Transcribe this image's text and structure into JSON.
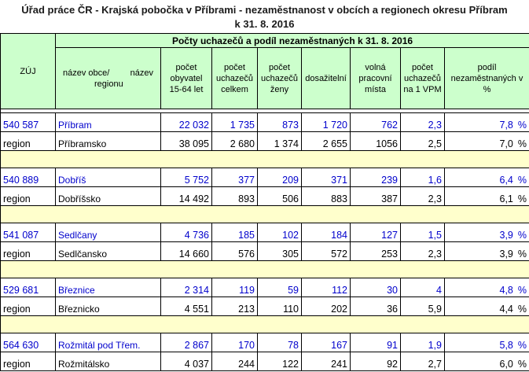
{
  "title": {
    "line1": "Úřad práce ČR - Krajská pobočka v Příbrami - nezaměstnanost v obcích a regionech okresu Příbram",
    "line2": "k 31. 8. 2016"
  },
  "header": {
    "group": "Počty uchazečů a podíl nezaměstnaných k 31. 8. 2016",
    "zuj": "ZÚJ",
    "name_a": "název obce/",
    "name_b": "název",
    "name_c": "regionu",
    "pop": "počet obyvatel 15-64 let",
    "total": "počet uchazečů celkem",
    "women": "počet uchazečů ženy",
    "avail": "dosažitelní",
    "vacancies": "volná pracovní místa",
    "per_vpm": "počet uchazečů na 1 VPM",
    "share": "podíl nezaměstnaných v %"
  },
  "groups": [
    {
      "municipality": {
        "code": "540 587",
        "name": "Příbram",
        "pop": "22 032",
        "total": "1 735",
        "women": "873",
        "avail": "1 720",
        "vacancies": "762",
        "per_vpm": "2,3",
        "share": "7,8",
        "unit": "%"
      },
      "region": {
        "code": "region",
        "name": "Příbramsko",
        "pop": "38 095",
        "total": "2 680",
        "women": "1 374",
        "avail": "2 655",
        "vacancies": "1056",
        "per_vpm": "2,5",
        "share": "7,0",
        "unit": "%"
      }
    },
    {
      "municipality": {
        "code": "540 889",
        "name": "Dobříš",
        "pop": "5 752",
        "total": "377",
        "women": "209",
        "avail": "371",
        "vacancies": "239",
        "per_vpm": "1,6",
        "share": "6,4",
        "unit": "%"
      },
      "region": {
        "code": "region",
        "name": "Dobříšsko",
        "pop": "14 492",
        "total": "893",
        "women": "506",
        "avail": "883",
        "vacancies": "387",
        "per_vpm": "2,3",
        "share": "6,1",
        "unit": "%"
      }
    },
    {
      "municipality": {
        "code": "541 087",
        "name": "Sedlčany",
        "pop": "4 736",
        "total": "185",
        "women": "102",
        "avail": "184",
        "vacancies": "127",
        "per_vpm": "1,5",
        "share": "3,9",
        "unit": "%"
      },
      "region": {
        "code": "region",
        "name": "Sedlčansko",
        "pop": "14 660",
        "total": "576",
        "women": "305",
        "avail": "572",
        "vacancies": "253",
        "per_vpm": "2,3",
        "share": "3,9",
        "unit": "%"
      }
    },
    {
      "municipality": {
        "code": "529 681",
        "name": "Březnice",
        "pop": "2 314",
        "total": "119",
        "women": "59",
        "avail": "112",
        "vacancies": "30",
        "per_vpm": "4",
        "share": "4,8",
        "unit": "%"
      },
      "region": {
        "code": "region",
        "name": "Březnicko",
        "pop": "4 551",
        "total": "213",
        "women": "110",
        "avail": "202",
        "vacancies": "36",
        "per_vpm": "5,9",
        "share": "4,4",
        "unit": "%"
      }
    },
    {
      "municipality": {
        "code": "564 630",
        "name": "Rožmitál pod Třem.",
        "pop": "2 867",
        "total": "170",
        "women": "78",
        "avail": "167",
        "vacancies": "91",
        "per_vpm": "1,9",
        "share": "5,8",
        "unit": "%"
      },
      "region": {
        "code": "region",
        "name": "Rožmitálsko",
        "pop": "4 037",
        "total": "244",
        "women": "122",
        "avail": "241",
        "vacancies": "92",
        "per_vpm": "2,7",
        "share": "6,0",
        "unit": "%"
      }
    }
  ]
}
